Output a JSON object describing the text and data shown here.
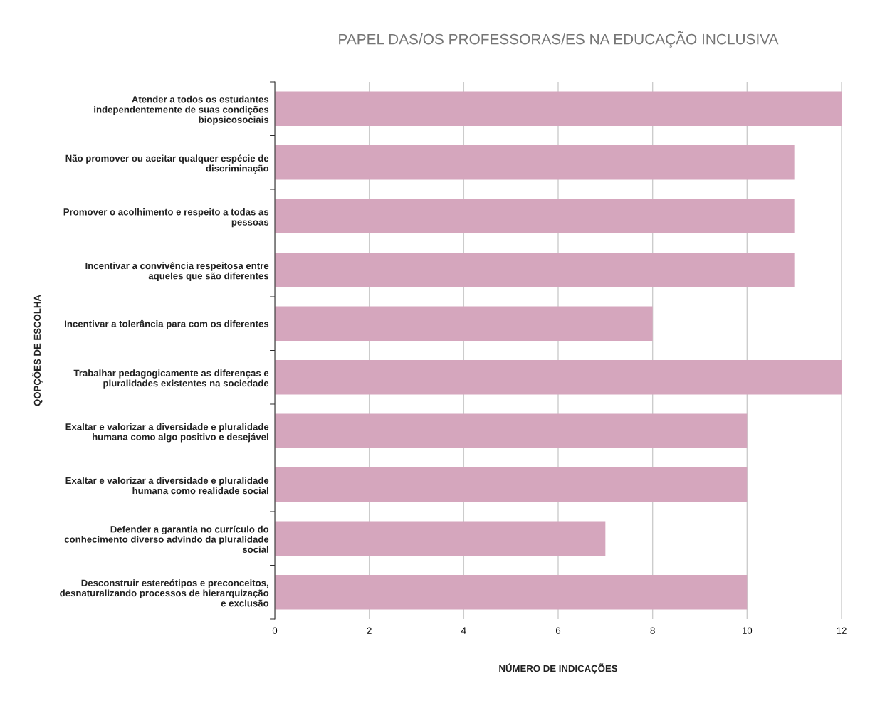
{
  "chart_data": {
    "type": "bar",
    "orientation": "horizontal",
    "title": "PAPEL DAS/OS PROFESSORAS/ES NA EDUCAÇÃO INCLUSIVA",
    "xlabel": "NÚMERO DE INDICAÇÕES",
    "ylabel": "QOPÇÕES DE ESCOLHA",
    "categories": [
      "Atender a todos os estudantes\nindependentemente de suas condições\nbiopsicosociais",
      "Não promover ou aceitar qualquer espécie de\ndiscriminação",
      "Promover o acolhimento e respeito a todas as\npessoas",
      "Incentivar a convivência respeitosa entre\naqueles que são diferentes",
      "Incentivar a tolerância para com os diferentes",
      "Trabalhar pedagogicamente as diferenças e\npluralidades existentes na sociedade",
      "Exaltar e valorizar a diversidade e pluralidade\nhumana como algo positivo e desejável",
      "Exaltar e valorizar a diversidade e pluralidade\nhumana como realidade social",
      "Defender a garantia no currículo do\nconhecimento diverso advindo da pluralidade\nsocial",
      "Desconstruir estereótipos e preconceitos,\ndesnaturalizando processos de hierarquização\ne exclusão"
    ],
    "values": [
      12,
      11,
      11,
      11,
      8,
      12,
      10,
      10,
      7,
      10
    ],
    "color": "#d5a6bd",
    "xlim": [
      0,
      12
    ],
    "xticks": [
      0,
      2,
      4,
      6,
      8,
      10,
      12
    ],
    "grid": "x",
    "legend": false
  }
}
